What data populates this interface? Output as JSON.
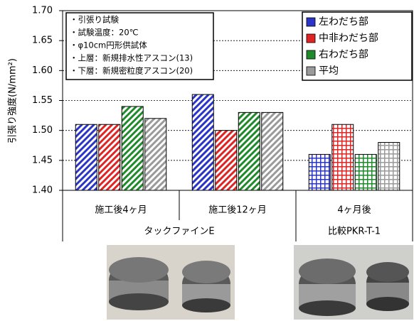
{
  "chart_data": {
    "type": "bar",
    "y_label": "引張り強度(N/mm²)",
    "categories": [
      "施工後4ヶ月",
      "施工後12ヶ月",
      "4ヶ月後"
    ],
    "groups": [
      {
        "label": "タックファインE",
        "span": 2
      },
      {
        "label": "比較PKR-T-1",
        "span": 1
      }
    ],
    "category_patterns": [
      "diagonal",
      "diagonal",
      "grid"
    ],
    "series": [
      {
        "name": "左わだち部",
        "color": "#2a35c8",
        "values": [
          1.51,
          1.56,
          1.46
        ]
      },
      {
        "name": "中非わだち部",
        "color": "#e02424",
        "values": [
          1.51,
          1.5,
          1.51
        ]
      },
      {
        "name": "右わだち部",
        "color": "#1f8a2a",
        "values": [
          1.54,
          1.53,
          1.46
        ]
      },
      {
        "name": "平均",
        "color": "#9a9a9a",
        "values": [
          1.52,
          1.53,
          1.48
        ]
      }
    ],
    "ylim": [
      1.4,
      1.7
    ],
    "yticks": [
      {
        "value": 1.4,
        "label": "1.40"
      },
      {
        "value": 1.45,
        "label": "1.45"
      },
      {
        "value": 1.5,
        "label": "1.50"
      },
      {
        "value": 1.55,
        "label": "1.55"
      },
      {
        "value": 1.6,
        "label": "1.60"
      },
      {
        "value": 1.65,
        "label": "1.65"
      },
      {
        "value": 1.7,
        "label": "1.70"
      }
    ],
    "grid": true,
    "legend": "upper right",
    "annotations": [
      "・引張り試験",
      "・試験温度：20℃",
      "・φ10cm円形供試体",
      "・上層：新規排水性アスコン(13)",
      "・下層：新規密粒度アスコン(20)"
    ]
  }
}
